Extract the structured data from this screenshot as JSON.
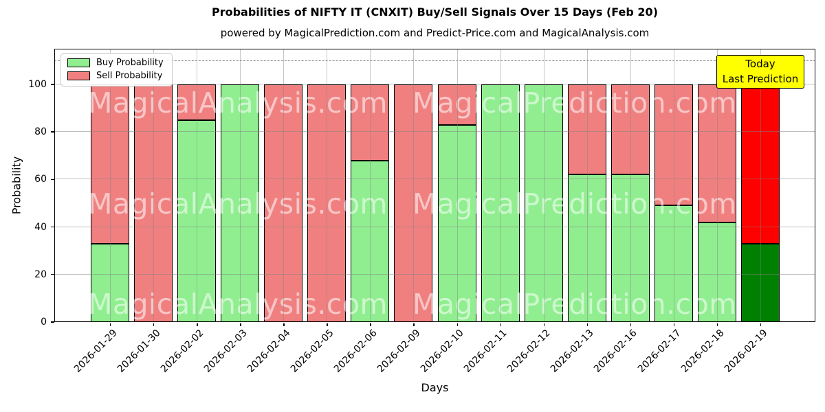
{
  "figure": {
    "title": "Probabilities of NIFTY IT (CNXIT) Buy/Sell Signals Over 15 Days (Feb 20)",
    "subtitle": "powered by MagicalPrediction.com and Predict-Price.com and MagicalAnalysis.com"
  },
  "chart_data": {
    "type": "bar",
    "stacked": true,
    "title": "Probabilities of NIFTY IT (CNXIT) Buy/Sell Signals Over 15 Days (Feb 20)",
    "subtitle": "powered by MagicalPrediction.com and Predict-Price.com and MagicalAnalysis.com",
    "xlabel": "Days",
    "ylabel": "Probability",
    "categories": [
      "2026-01-29",
      "2026-01-30",
      "2026-02-02",
      "2026-02-03",
      "2026-02-04",
      "2026-02-05",
      "2026-02-06",
      "2026-02-09",
      "2026-02-10",
      "2026-02-11",
      "2026-02-12",
      "2026-02-13",
      "2026-02-16",
      "2026-02-17",
      "2026-02-18",
      "2026-02-19"
    ],
    "series": [
      {
        "name": "Buy Probability",
        "color": "#90ee90",
        "values": [
          33,
          0,
          85,
          100,
          0,
          0,
          68,
          0,
          83,
          100,
          100,
          62,
          62,
          49,
          42,
          33
        ]
      },
      {
        "name": "Sell Probability",
        "color": "#f08080",
        "values": [
          67,
          100,
          15,
          0,
          100,
          100,
          32,
          100,
          17,
          0,
          0,
          38,
          38,
          51,
          58,
          67
        ]
      }
    ],
    "last_bar_colors": {
      "buy": "#008000",
      "sell": "#ff0000"
    },
    "ylim": [
      0,
      115
    ],
    "yticks": [
      0,
      20,
      40,
      60,
      80,
      100
    ],
    "grid": true,
    "dashed_guide_y": 110,
    "legend_position": "upper-left"
  },
  "legend": {
    "items": [
      {
        "label": "Buy Probability",
        "color": "#90ee90"
      },
      {
        "label": "Sell Probability",
        "color": "#f08080"
      }
    ]
  },
  "annotation_box": {
    "line1": "Today",
    "line2": "Last Prediction",
    "bg_color": "#ffff00"
  },
  "watermarks": {
    "left_text": "MagicalAnalysis.com",
    "right_text": "MagicalPrediction.com"
  }
}
